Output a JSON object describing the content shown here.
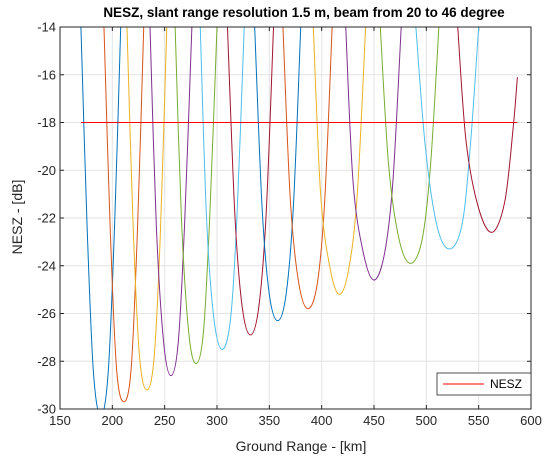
{
  "chart_data": {
    "type": "line",
    "title": "NESZ, slant range resolution 1.5 m, beam from 20 to 46 degree",
    "xlabel": "Ground Range - [km]",
    "ylabel": "NESZ - [dB]",
    "xlim": [
      150,
      600
    ],
    "ylim": [
      -30,
      -14
    ],
    "xticks": [
      150,
      200,
      250,
      300,
      350,
      400,
      450,
      500,
      550,
      600
    ],
    "yticks": [
      -30,
      -28,
      -26,
      -24,
      -22,
      -20,
      -18,
      -16,
      -14
    ],
    "xtick_labels": [
      "150",
      "200",
      "250",
      "300",
      "350",
      "400",
      "450",
      "500",
      "550",
      "600"
    ],
    "ytick_labels": [
      "-30",
      "-28",
      "-26",
      "-24",
      "-22",
      "-20",
      "-18",
      "-16",
      "-14"
    ],
    "grid": true,
    "legend": {
      "location": "bottom-right",
      "entries": [
        "NESZ"
      ]
    },
    "reference_line": {
      "name": "NESZ",
      "y": -18,
      "x": [
        170,
        587
      ],
      "color": "#ff0000"
    },
    "beams": [
      {
        "color": "#0072bd",
        "x": [
          170,
          176,
          182,
          189,
          196,
          202,
          208
        ],
        "y": [
          -14,
          -22.5,
          -28.5,
          -30.3,
          -28.5,
          -22.5,
          -14
        ]
      },
      {
        "color": "#d95319",
        "x": [
          192,
          198,
          204,
          211,
          218,
          224,
          230
        ],
        "y": [
          -14,
          -22.5,
          -28.3,
          -29.7,
          -28.3,
          -22.5,
          -14
        ]
      },
      {
        "color": "#edb120",
        "x": [
          214,
          220,
          226,
          233,
          240,
          246,
          252
        ],
        "y": [
          -14,
          -22.5,
          -27.8,
          -29.2,
          -27.8,
          -22.5,
          -14
        ]
      },
      {
        "color": "#7e2f8e",
        "x": [
          236,
          242,
          249,
          256,
          263,
          269,
          276
        ],
        "y": [
          -14,
          -22.3,
          -27.2,
          -28.6,
          -27.2,
          -22.3,
          -14
        ]
      },
      {
        "color": "#77ac30",
        "x": [
          260,
          266,
          273,
          280,
          287,
          293,
          300
        ],
        "y": [
          -14,
          -22,
          -26.8,
          -28.1,
          -26.8,
          -22,
          -14
        ]
      },
      {
        "color": "#4dbeee",
        "x": [
          284,
          290,
          297,
          305,
          313,
          319,
          326
        ],
        "y": [
          -14,
          -22,
          -26.2,
          -27.5,
          -26.2,
          -22,
          -14
        ]
      },
      {
        "color": "#a2142f",
        "x": [
          310,
          317,
          324,
          332,
          340,
          347,
          354
        ],
        "y": [
          -14,
          -21.8,
          -25.7,
          -26.9,
          -25.7,
          -21.8,
          -14
        ]
      },
      {
        "color": "#0072bd",
        "x": [
          336,
          343,
          350,
          358,
          366,
          373,
          380
        ],
        "y": [
          -14,
          -21.5,
          -25.2,
          -26.3,
          -25.2,
          -21.5,
          -14
        ]
      },
      {
        "color": "#d95319",
        "x": [
          363,
          370,
          378,
          387,
          396,
          403,
          410
        ],
        "y": [
          -14,
          -21.2,
          -24.7,
          -25.8,
          -24.7,
          -21.2,
          -14
        ]
      },
      {
        "color": "#edb120",
        "x": [
          392,
          399,
          408,
          417,
          426,
          434,
          442
        ],
        "y": [
          -14,
          -21,
          -24.1,
          -25.2,
          -24.1,
          -21,
          -14
        ]
      },
      {
        "color": "#7e2f8e",
        "x": [
          423,
          430,
          440,
          450,
          460,
          468,
          476
        ],
        "y": [
          -14,
          -20.5,
          -23.5,
          -24.6,
          -23.5,
          -20.5,
          -14
        ]
      },
      {
        "color": "#77ac30",
        "x": [
          456,
          464,
          474,
          485,
          496,
          504,
          512
        ],
        "y": [
          -14,
          -19.8,
          -22.9,
          -23.9,
          -22.9,
          -19.8,
          -14
        ]
      },
      {
        "color": "#4dbeee",
        "x": [
          490,
          499,
          510,
          522,
          534,
          542,
          550
        ],
        "y": [
          -14,
          -19,
          -22.3,
          -23.3,
          -22.3,
          -19,
          -14
        ]
      },
      {
        "color": "#a2142f",
        "x": [
          530,
          538,
          550,
          563,
          575,
          583,
          587
        ],
        "y": [
          -14,
          -18.8,
          -21.6,
          -22.6,
          -21.3,
          -18.2,
          -16.1
        ]
      }
    ]
  }
}
